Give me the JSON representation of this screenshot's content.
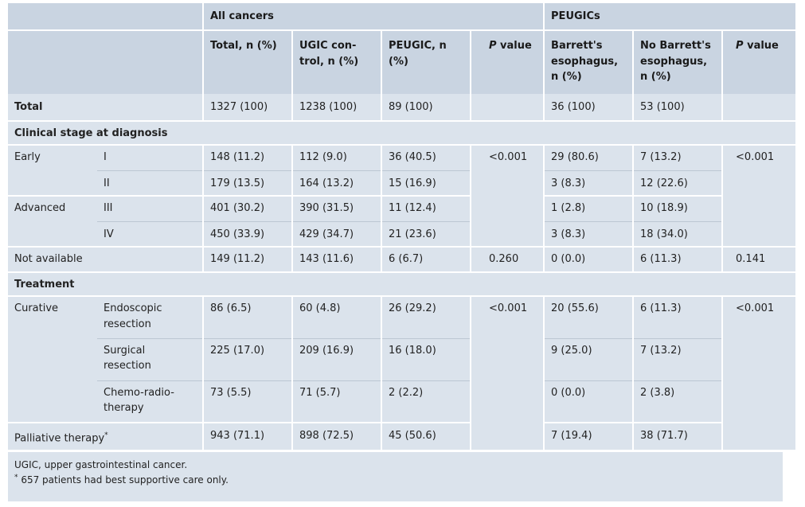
{
  "header": {
    "group_all": "All cancers",
    "group_peugic": "PEUGICs",
    "col_total": "Total, n (%)",
    "col_ugic_line1": "UGIC con-",
    "col_ugic_line2": "trol, n (%)",
    "col_peugic_line1": "PEUGIC, n",
    "col_peugic_line2": "(%)",
    "col_p1_a": "P",
    "col_p1_b": " value",
    "col_barrett_line1": "Barrett's",
    "col_barrett_line2": "esophagus,",
    "col_barrett_line3": "n (%)",
    "col_nobarrett_line1": "No Barrett's",
    "col_nobarrett_line2": "esophagus,",
    "col_nobarrett_line3": "n (%)",
    "col_p2_a": "P",
    "col_p2_b": " value"
  },
  "rows": {
    "total": {
      "label": "Total",
      "total": "1327 (100)",
      "ugic": "1238 (100)",
      "peugic": "89 (100)",
      "barrett": "36 (100)",
      "nobarrett": "53 (100)"
    },
    "section_stage": "Clinical stage at diagnosis",
    "early_label": "Early",
    "advanced_label": "Advanced",
    "stage_I": {
      "stage": "I",
      "total": "148 (11.2)",
      "ugic": "112 (9.0)",
      "peugic": "36 (40.5)",
      "p1": "<0.001",
      "barrett": "29 (80.6)",
      "nobarrett": "7 (13.2)",
      "p2": "<0.001"
    },
    "stage_II": {
      "stage": "II",
      "total": "179 (13.5)",
      "ugic": "164 (13.2)",
      "peugic": "15 (16.9)",
      "barrett": "3 (8.3)",
      "nobarrett": "12 (22.6)"
    },
    "stage_III": {
      "stage": "III",
      "total": "401 (30.2)",
      "ugic": "390 (31.5)",
      "peugic": "11 (12.4)",
      "barrett": "1 (2.8)",
      "nobarrett": "10 (18.9)"
    },
    "stage_IV": {
      "stage": "IV",
      "total": "450 (33.9)",
      "ugic": "429 (34.7)",
      "peugic": "21 (23.6)",
      "barrett": "3 (8.3)",
      "nobarrett": "18 (34.0)"
    },
    "not_available": {
      "label": "Not available",
      "total": "149 (11.2)",
      "ugic": "143 (11.6)",
      "peugic": "6 (6.7)",
      "p1": "0.260",
      "barrett": "0 (0.0)",
      "nobarrett": "6 (11.3)",
      "p2": "0.141"
    },
    "section_treatment": "Treatment",
    "curative_label": "Curative",
    "endoscopic": {
      "line1": "Endoscopic",
      "line2": "resection",
      "total": "86 (6.5)",
      "ugic": "60 (4.8)",
      "peugic": "26 (29.2)",
      "p1": "<0.001",
      "barrett": "20 (55.6)",
      "nobarrett": "6 (11.3)",
      "p2": "<0.001"
    },
    "surgical": {
      "line1": "Surgical",
      "line2": "resection",
      "total": "225 (17.0)",
      "ugic": "209 (16.9)",
      "peugic": "16 (18.0)",
      "barrett": "9 (25.0)",
      "nobarrett": "7 (13.2)"
    },
    "chemo": {
      "line1": "Chemo-radio-",
      "line2": "therapy",
      "total": "73 (5.5)",
      "ugic": "71 (5.7)",
      "peugic": "2 (2.2)",
      "barrett": "0 (0.0)",
      "nobarrett": "2 (3.8)"
    },
    "palliative": {
      "label": "Palliative therapy",
      "mark": "*",
      "total": "943 (71.1)",
      "ugic": "898 (72.5)",
      "peugic": "45 (50.6)",
      "barrett": "7 (19.4)",
      "nobarrett": "38 (71.7)"
    }
  },
  "notes": {
    "line1": "UGIC, upper gastrointestinal cancer.",
    "mark": "*",
    "line2": " 657 patients had best supportive care only."
  },
  "colors": {
    "header": "#c9d4e1",
    "band": "#dbe3ec"
  }
}
